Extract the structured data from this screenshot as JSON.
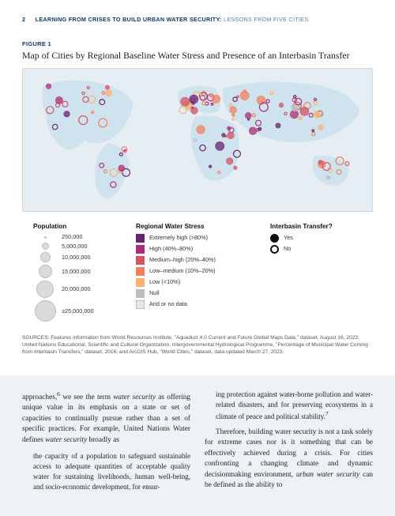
{
  "page_number": "2",
  "running_head_bold": "LEARNING FROM CRISES TO BUILD URBAN WATER SECURITY:",
  "running_head_light": " LESSONS FROM FIVE CITIES",
  "figure": {
    "label": "FIGURE 1",
    "title": "Map of Cities by Regional Baseline Water Stress and Presence of an Interbasin Transfer",
    "map": {
      "ocean_color": "#e6edf3",
      "land_color": "#cfe3ef",
      "circle_colors": [
        "#6b2276",
        "#ad2d78",
        "#d65161",
        "#f1815c",
        "#f9b270",
        "#bdbdbd"
      ]
    },
    "population": {
      "heading": "Population",
      "items": [
        {
          "label": "250,000",
          "d": 3
        },
        {
          "label": "5,000,000",
          "d": 9
        },
        {
          "label": "10,000,000",
          "d": 13
        },
        {
          "label": "15,000,000",
          "d": 17
        },
        {
          "label": "20,000,000",
          "d": 22
        },
        {
          "label": "≥25,000,000",
          "d": 27
        }
      ]
    },
    "stress": {
      "heading": "Regional Water Stress",
      "items": [
        {
          "label": "Extremely high (>80%)",
          "color": "#6b2276"
        },
        {
          "label": "High (40%–80%)",
          "color": "#ad2d78"
        },
        {
          "label": "Medium–high (20%–40%)",
          "color": "#d65161"
        },
        {
          "label": "Low–medium (10%–20%)",
          "color": "#f1815c"
        },
        {
          "label": "Low (<10%)",
          "color": "#f9b270"
        },
        {
          "label": "Null",
          "color": "#bdbdbd"
        },
        {
          "label": "Arid or no data",
          "color": "#e8e8e8"
        }
      ]
    },
    "interbasin": {
      "heading": "Interbasin Transfer?",
      "yes": "Yes",
      "no": "No"
    },
    "sources": "SOURCES: Features information from World Resources Institute, \"Aqueduct 4.0 Current and Future Global Maps Data,\" dataset, August 16, 2023; United Nations Educational, Scientific and Cultural Organization, Intergovernmental Hydrological Programme, \"Percentage of Municipal Water Coming from Interbasin Transfers,\" dataset, 2016; and ArcGIS Hub, \"World Cities,\" dataset, data updated March 27, 2023."
  },
  "body": {
    "p1a": "approaches,",
    "p1sup": "6",
    "p1b": " we see the term ",
    "p1i": "water security",
    "p1c": " as offering unique value in its emphasis on a state or set of capacities to continually pursue rather than a set of specific practices. For example, United Nations Water defines ",
    "p1i2": "water security",
    "p1d": " broadly as",
    "quote": "the capacity of a population to safeguard sustainable access to adequate quantities of acceptable quality water for sustaining livelihoods, human well-being, and socio-economic development, for ensur-",
    "p2a": "ing protection against water-borne pollution and water-related disasters, and for preserving ecosystems in a climate of peace and political stability.",
    "p2sup": "7",
    "p3a": "Therefore, building water security is not a task solely for extreme cases nor is it something that can be effectively achieved during a crisis. For cities confronting a changing climate and dynamic decisionmaking environment, ",
    "p3i": "urban water security",
    "p3b": " can be defined as the ability to"
  }
}
